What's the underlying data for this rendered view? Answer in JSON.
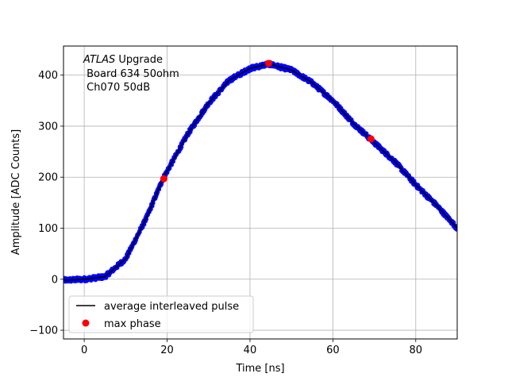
{
  "chart_data": {
    "type": "scatter",
    "title": "",
    "xlabel": "Time [ns]",
    "ylabel": "Amplitude [ADC Counts]",
    "xlim": [
      -5,
      90
    ],
    "ylim": [
      -117,
      457
    ],
    "xticks": [
      0,
      20,
      40,
      60,
      80
    ],
    "yticks": [
      -100,
      0,
      100,
      200,
      300,
      400
    ],
    "grid": true,
    "annotation": {
      "italic": "ATLAS",
      "rest": " Upgrade",
      "line2": " Board 634 50ohm",
      "line3": " Ch070 50dB"
    },
    "legend": {
      "location": "lower-left",
      "entries": [
        {
          "label": "average interleaved pulse",
          "style": "line",
          "color": "#000000"
        },
        {
          "label": "max phase",
          "style": "marker",
          "color": "#ff0000"
        }
      ]
    },
    "series": [
      {
        "name": "average interleaved pulse",
        "style": "line",
        "color": "#000000",
        "points": [
          [
            -5,
            -2
          ],
          [
            0,
            0
          ],
          [
            5,
            5
          ],
          [
            10,
            40
          ],
          [
            15,
            120
          ],
          [
            19,
            197
          ],
          [
            25,
            285
          ],
          [
            30,
            345
          ],
          [
            35,
            390
          ],
          [
            40,
            413
          ],
          [
            44.5,
            422
          ],
          [
            50,
            410
          ],
          [
            55,
            385
          ],
          [
            60,
            350
          ],
          [
            65,
            305
          ],
          [
            69,
            275
          ],
          [
            75,
            230
          ],
          [
            80,
            185
          ],
          [
            85,
            145
          ],
          [
            90,
            100
          ]
        ]
      },
      {
        "name": "",
        "style": "dense-markers",
        "color": "#0000ff",
        "points": [
          [
            -5,
            -2
          ],
          [
            0,
            0
          ],
          [
            5,
            5
          ],
          [
            10,
            40
          ],
          [
            15,
            120
          ],
          [
            19,
            197
          ],
          [
            25,
            285
          ],
          [
            30,
            345
          ],
          [
            35,
            390
          ],
          [
            40,
            413
          ],
          [
            44.5,
            422
          ],
          [
            50,
            410
          ],
          [
            55,
            385
          ],
          [
            60,
            350
          ],
          [
            65,
            305
          ],
          [
            69,
            275
          ],
          [
            75,
            230
          ],
          [
            80,
            185
          ],
          [
            85,
            145
          ],
          [
            90,
            100
          ]
        ]
      },
      {
        "name": "max phase",
        "style": "marker",
        "color": "#ff0000",
        "points": [
          [
            19.2,
            197
          ],
          [
            44.5,
            423
          ],
          [
            69.2,
            275
          ]
        ]
      }
    ]
  }
}
